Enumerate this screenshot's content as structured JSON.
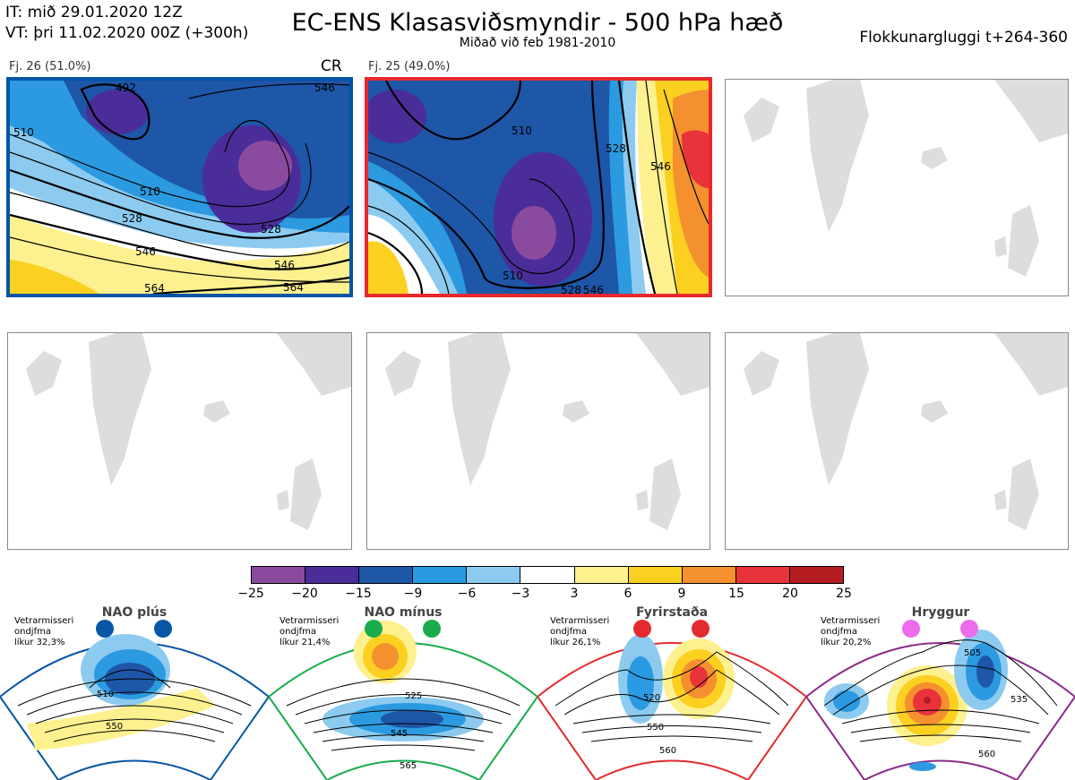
{
  "header": {
    "initial_time": "IT: mið 29.01.2020 12Z",
    "valid_time": "VT: þri 11.02.2020 00Z  (+300h)",
    "title": "EC-ENS Klasasviðsmyndir - 500 hPa hæð",
    "subtitle": "Miðað við feb 1981-2010",
    "window": "Flokkunargluggi t+264-360"
  },
  "clusters": [
    {
      "label": "Fj. 26 (51.0%)",
      "tag": "CR",
      "frame_color": "#0055a5"
    },
    {
      "label": "Fj. 25 (49.0%)",
      "tag": "",
      "frame_color": "#e8282c"
    }
  ],
  "map_labels": {
    "cluster1": [
      "492",
      "510",
      "528",
      "546",
      "546",
      "564",
      "510",
      "528",
      "546",
      "564"
    ],
    "cluster2": [
      "510",
      "528",
      "546",
      "510",
      "528",
      "546"
    ]
  },
  "colorbar": {
    "colors": [
      "#8a4a9e",
      "#4b2d9a",
      "#1e56a8",
      "#2b9ae0",
      "#8ccbef",
      "#ffffff",
      "#fdf08e",
      "#fcd021",
      "#f4902e",
      "#e8333b",
      "#b71c22"
    ],
    "ticks": [
      "−25",
      "−20",
      "−15",
      "−9",
      "−6",
      "−3",
      "3",
      "6",
      "9",
      "15",
      "20",
      "25"
    ]
  },
  "regimes": [
    {
      "name": "NAO plús",
      "info": [
        "Vetrarmisseri",
        "ondjfma",
        "líkur 32,3%"
      ],
      "dot_color": "#0a56a6",
      "frame_color": "#0a56a6",
      "contours": [
        "510",
        "550"
      ]
    },
    {
      "name": "NAO mínus",
      "info": [
        "Vetrarmisseri",
        "ondjfma",
        "líkur 21,4%"
      ],
      "dot_color": "#1aac4c",
      "frame_color": "#1aac4c",
      "contours": [
        "525",
        "545",
        "565"
      ]
    },
    {
      "name": "Fyrirstaða",
      "info": [
        "Vetrarmisseri",
        "ondjfma",
        "líkur 26,1%"
      ],
      "dot_color": "#e32a2f",
      "frame_color": "#e32a2f",
      "contours": [
        "520",
        "550",
        "560"
      ]
    },
    {
      "name": "Hryggur",
      "info": [
        "Vetrarmisseri",
        "ondjfma",
        "líkur 20,2%"
      ],
      "dot_color": "#ec6cec",
      "frame_color": "#8b2b8b",
      "contours": [
        "505",
        "535",
        "560"
      ]
    }
  ]
}
